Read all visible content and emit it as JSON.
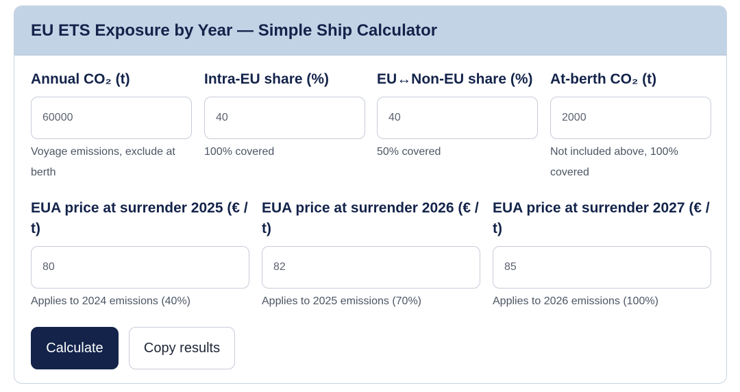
{
  "card": {
    "title": "EU ETS Exposure by Year — Simple Ship Calculator"
  },
  "row1": [
    {
      "label": "Annual CO₂ (t)",
      "value": "60000",
      "hint": "Voyage emissions, exclude at berth"
    },
    {
      "label": "Intra-EU share (%)",
      "value": "40",
      "hint": "100% covered"
    },
    {
      "label": "EU↔Non-EU share (%)",
      "value": "40",
      "hint": "50% covered"
    },
    {
      "label": "At-berth CO₂ (t)",
      "value": "2000",
      "hint": "Not included above, 100% covered"
    }
  ],
  "row2": [
    {
      "label": "EUA price at surrender 2025 (€ / t)",
      "value": "80",
      "hint": "Applies to 2024 emissions (40%)"
    },
    {
      "label": "EUA price at surrender 2026 (€ / t)",
      "value": "82",
      "hint": "Applies to 2025 emissions (70%)"
    },
    {
      "label": "EUA price at surrender 2027 (€ / t)",
      "value": "85",
      "hint": "Applies to 2026 emissions (100%)"
    }
  ],
  "actions": {
    "calculate_label": "Calculate",
    "copy_label": "Copy results"
  }
}
